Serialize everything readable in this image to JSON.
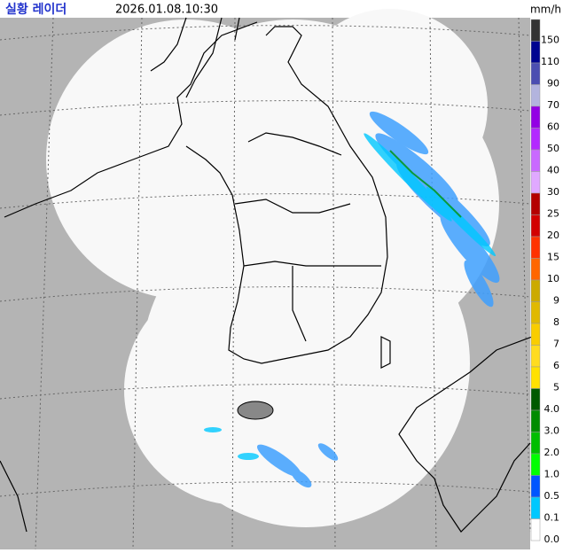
{
  "header": {
    "title": "실황 레이더",
    "timestamp": "2026.01.08.10:30",
    "unit": "mm/h"
  },
  "legend": {
    "items": [
      {
        "label": "150",
        "color": "#333333"
      },
      {
        "label": "110",
        "color": "#000390"
      },
      {
        "label": "90",
        "color": "#4c4eb1"
      },
      {
        "label": "70",
        "color": "#b3b4de"
      },
      {
        "label": "60",
        "color": "#9300e4"
      },
      {
        "label": "50",
        "color": "#b329ff"
      },
      {
        "label": "40",
        "color": "#c969ff"
      },
      {
        "label": "30",
        "color": "#e0a9ff"
      },
      {
        "label": "25",
        "color": "#b40000"
      },
      {
        "label": "20",
        "color": "#d20000"
      },
      {
        "label": "15",
        "color": "#ff3200"
      },
      {
        "label": "10",
        "color": "#ff6600"
      },
      {
        "label": "9",
        "color": "#ccaa00"
      },
      {
        "label": "8",
        "color": "#e0b900"
      },
      {
        "label": "7",
        "color": "#f9cd00"
      },
      {
        "label": "6",
        "color": "#ffdc1f"
      },
      {
        "label": "5",
        "color": "#ffe100"
      },
      {
        "label": "4.0",
        "color": "#005a00"
      },
      {
        "label": "3.0",
        "color": "#008c00"
      },
      {
        "label": "2.0",
        "color": "#00be00"
      },
      {
        "label": "1.0",
        "color": "#00ff00"
      },
      {
        "label": "0.5",
        "color": "#0055ff"
      },
      {
        "label": "0.1",
        "color": "#00c8ff"
      },
      {
        "label": "0.0",
        "color": "#ffffff"
      }
    ]
  }
}
